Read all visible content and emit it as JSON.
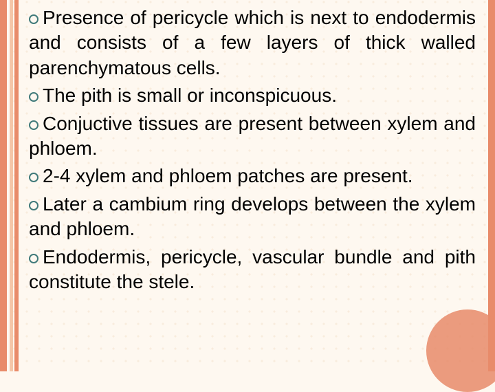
{
  "slide": {
    "background_color": "#fef8f0",
    "stripe_colors": [
      "#e88b6a",
      "#f4c6a8",
      "#e88b6a"
    ],
    "accent_circle_color": "#e88b6a",
    "bullet_marker_color": "#407a7a",
    "text_color": "#000000",
    "font_family": "Comic Sans MS",
    "font_size_pt": 21,
    "text_align": "justify"
  },
  "bullets": {
    "item0": "Presence of pericycle which is next to endodermis and consists of a few layers of thick walled parenchymatous cells.",
    "item1": "The pith is small or inconspicuous.",
    "item2": "Conjuctive tissues are present between xylem and phloem.",
    "item3": "2-4 xylem and phloem patches are present.",
    "item4": "Later a cambium ring develops between the xylem and phloem.",
    "item5": "Endodermis, pericycle, vascular bundle and pith constitute the stele."
  }
}
